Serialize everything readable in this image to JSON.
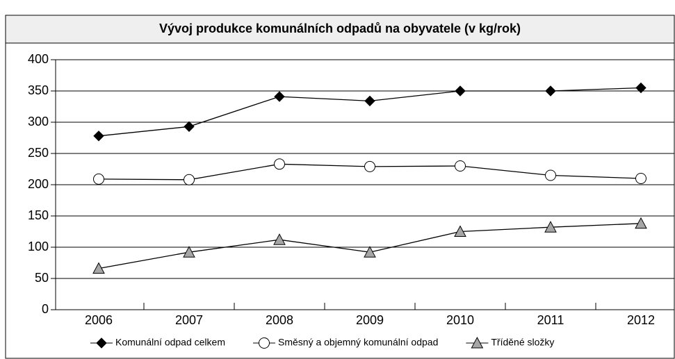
{
  "chart_data": {
    "type": "line",
    "title": "Vývoj produkce komunálních odpadů na obyvatele (v kg/rok)",
    "categories": [
      "2006",
      "2007",
      "2008",
      "2009",
      "2010",
      "2011",
      "2012"
    ],
    "series": [
      {
        "name": "Komunální odpad celkem",
        "color": "#000000",
        "marker": "diamond",
        "values": [
          278,
          293,
          341,
          334,
          350,
          350,
          355
        ]
      },
      {
        "name": "Směsný a objemný komunální odpad",
        "color": "#ffffff",
        "marker": "circle",
        "values": [
          209,
          208,
          233,
          229,
          230,
          215,
          210
        ]
      },
      {
        "name": "Tříděné složky",
        "color": "#a6a6a6",
        "marker": "triangle",
        "values": [
          66,
          92,
          112,
          92,
          125,
          132,
          138
        ]
      }
    ],
    "ylim": [
      0,
      400
    ],
    "yticks": [
      0,
      50,
      100,
      150,
      200,
      250,
      300,
      350,
      400
    ],
    "grid": true,
    "legend": "bottom"
  }
}
